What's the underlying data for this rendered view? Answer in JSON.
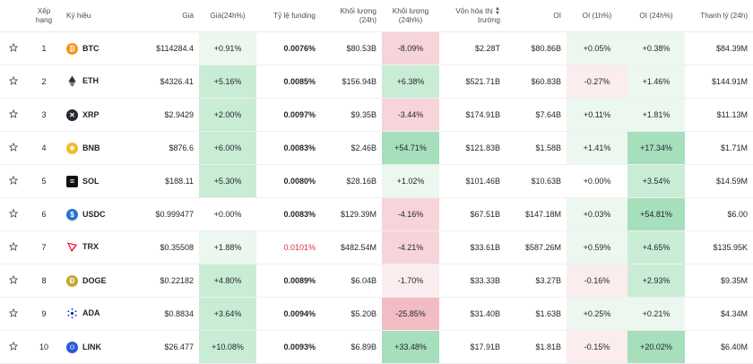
{
  "headers": {
    "rank": "Xếp hạng",
    "symbol": "Ký hiệu",
    "price": "Giá",
    "price_change": "Giá(24h%)",
    "funding": "Tỷ lệ funding",
    "volume": "Khối lượng (24h)",
    "volume_change": "Khối lượng (24h%)",
    "mcap_line1": "Vốn hóa thị",
    "mcap_line2": "trường",
    "oi": "OI",
    "oi1h": "OI (1h%)",
    "oi24h": "OI (24h%)",
    "liquidation": "Thanh lý (24h)"
  },
  "colors": {
    "positive_bg": "#c9ecd5",
    "negative_bg": "#f7d4d9",
    "negative_text": "#e0294a",
    "btc": "#f7931a",
    "bnb": "#f3ba2f",
    "usdc": "#2775ca",
    "trx": "#ef0027"
  },
  "rows": [
    {
      "rank": "1",
      "symbol": "BTC",
      "icon": "btc-icon",
      "price": "$114284.4",
      "price_change": "+0.91%",
      "funding": "0.0076%",
      "volume": "$80.53B",
      "volume_change": "-8.09%",
      "mcap": "$2.28T",
      "oi": "$80.86B",
      "oi1h": "+0.05%",
      "oi24h": "+0.38%",
      "liquidation": "$84.39M"
    },
    {
      "rank": "2",
      "symbol": "ETH",
      "icon": "eth-icon",
      "price": "$4326.41",
      "price_change": "+5.16%",
      "funding": "0.0085%",
      "volume": "$156.94B",
      "volume_change": "+6.38%",
      "mcap": "$521.71B",
      "oi": "$60.83B",
      "oi1h": "-0.27%",
      "oi24h": "+1.46%",
      "liquidation": "$144.91M"
    },
    {
      "rank": "3",
      "symbol": "XRP",
      "icon": "xrp-icon",
      "price": "$2.9429",
      "price_change": "+2.00%",
      "funding": "0.0097%",
      "volume": "$9.35B",
      "volume_change": "-3.44%",
      "mcap": "$174.91B",
      "oi": "$7.64B",
      "oi1h": "+0.11%",
      "oi24h": "+1.81%",
      "liquidation": "$11.13M"
    },
    {
      "rank": "4",
      "symbol": "BNB",
      "icon": "bnb-icon",
      "price": "$876.6",
      "price_change": "+6.00%",
      "funding": "0.0083%",
      "volume": "$2.46B",
      "volume_change": "+54.71%",
      "mcap": "$121.83B",
      "oi": "$1.58B",
      "oi1h": "+1.41%",
      "oi24h": "+17.34%",
      "liquidation": "$1.71M"
    },
    {
      "rank": "5",
      "symbol": "SOL",
      "icon": "sol-icon",
      "price": "$188.11",
      "price_change": "+5.30%",
      "funding": "0.0080%",
      "volume": "$28.16B",
      "volume_change": "+1.02%",
      "mcap": "$101.46B",
      "oi": "$10.63B",
      "oi1h": "+0.00%",
      "oi24h": "+3.54%",
      "liquidation": "$14.59M"
    },
    {
      "rank": "6",
      "symbol": "USDC",
      "icon": "usdc-icon",
      "price": "$0.999477",
      "price_change": "+0.00%",
      "funding": "0.0083%",
      "volume": "$129.39M",
      "volume_change": "-4.16%",
      "mcap": "$67.51B",
      "oi": "$147.18M",
      "oi1h": "+0.03%",
      "oi24h": "+54.81%",
      "liquidation": "$6.00"
    },
    {
      "rank": "7",
      "symbol": "TRX",
      "icon": "trx-icon",
      "price": "$0.35508",
      "price_change": "+1.88%",
      "funding": "0.0101%",
      "volume": "$482.54M",
      "volume_change": "-4.21%",
      "mcap": "$33.61B",
      "oi": "$587.26M",
      "oi1h": "+0.59%",
      "oi24h": "+4.65%",
      "liquidation": "$135.95K"
    },
    {
      "rank": "8",
      "symbol": "DOGE",
      "icon": "doge-icon",
      "price": "$0.22182",
      "price_change": "+4.80%",
      "funding": "0.0089%",
      "volume": "$6.04B",
      "volume_change": "-1.70%",
      "mcap": "$33.33B",
      "oi": "$3.27B",
      "oi1h": "-0.16%",
      "oi24h": "+2.93%",
      "liquidation": "$9.35M"
    },
    {
      "rank": "9",
      "symbol": "ADA",
      "icon": "ada-icon",
      "price": "$0.8834",
      "price_change": "+3.64%",
      "funding": "0.0094%",
      "volume": "$5.20B",
      "volume_change": "-25.85%",
      "mcap": "$31.40B",
      "oi": "$1.63B",
      "oi1h": "+0.25%",
      "oi24h": "+0.21%",
      "liquidation": "$4.34M"
    },
    {
      "rank": "10",
      "symbol": "LINK",
      "icon": "link-icon",
      "price": "$26.477",
      "price_change": "+10.08%",
      "funding": "0.0093%",
      "volume": "$6.89B",
      "volume_change": "+33.48%",
      "mcap": "$17.91B",
      "oi": "$1.81B",
      "oi1h": "-0.15%",
      "oi24h": "+20.02%",
      "liquidation": "$6.40M"
    }
  ]
}
